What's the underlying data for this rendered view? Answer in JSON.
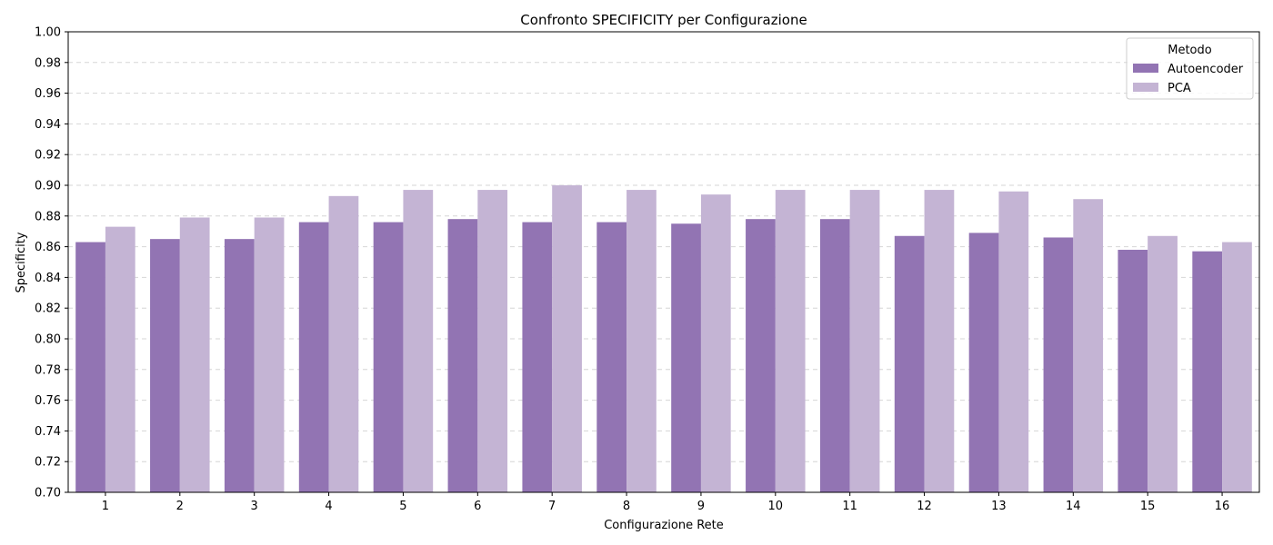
{
  "chart_data": {
    "type": "bar",
    "title": "Confronto SPECIFICITY per Configurazione",
    "xlabel": "Configurazione Rete",
    "ylabel": "Specificity",
    "categories": [
      "1",
      "2",
      "3",
      "4",
      "5",
      "6",
      "7",
      "8",
      "9",
      "10",
      "11",
      "12",
      "13",
      "14",
      "15",
      "16"
    ],
    "ylim": [
      0.7,
      1.0
    ],
    "yticks": [
      "0.70",
      "0.72",
      "0.74",
      "0.76",
      "0.78",
      "0.80",
      "0.82",
      "0.84",
      "0.86",
      "0.88",
      "0.90",
      "0.92",
      "0.94",
      "0.96",
      "0.98",
      "1.00"
    ],
    "grid": "y-dashed",
    "legend": {
      "title": "Metodo",
      "placement": "top-right"
    },
    "series": [
      {
        "name": "Autoencoder",
        "color": "#9274b3",
        "values": [
          0.863,
          0.865,
          0.865,
          0.876,
          0.876,
          0.878,
          0.876,
          0.876,
          0.875,
          0.878,
          0.878,
          0.867,
          0.869,
          0.866,
          0.858,
          0.857
        ]
      },
      {
        "name": "PCA",
        "color": "#c4b4d4",
        "values": [
          0.873,
          0.879,
          0.879,
          0.893,
          0.897,
          0.897,
          0.9,
          0.897,
          0.894,
          0.897,
          0.897,
          0.897,
          0.896,
          0.891,
          0.867,
          0.863
        ]
      }
    ]
  }
}
